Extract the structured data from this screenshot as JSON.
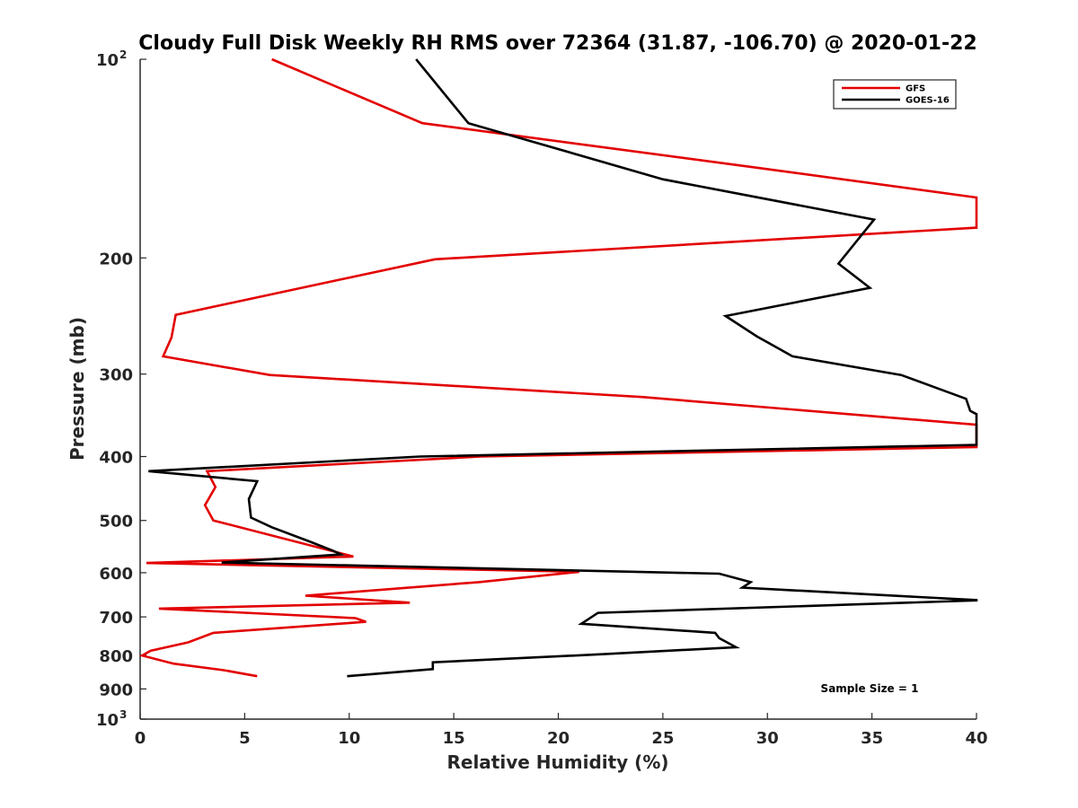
{
  "chart_data": {
    "type": "line",
    "title": "Cloudy Full Disk Weekly RH RMS over 72364 (31.87, -106.70) @ 2020-01-22",
    "xlabel": "Relative Humidity (%)",
    "ylabel": "Pressure (mb)",
    "xlim": [
      0,
      40
    ],
    "ylim": [
      100,
      1000
    ],
    "y_scale": "log",
    "y_reversed": true,
    "xticks": [
      "0",
      "5",
      "10",
      "15",
      "20",
      "25",
      "30",
      "35",
      "40"
    ],
    "yticks": [
      {
        "value": 100,
        "base": "10",
        "exp": "2"
      },
      {
        "value": 200,
        "label": "200"
      },
      {
        "value": 300,
        "label": "300"
      },
      {
        "value": 400,
        "label": "400"
      },
      {
        "value": 500,
        "label": "500"
      },
      {
        "value": 600,
        "label": "600"
      },
      {
        "value": 700,
        "label": "700"
      },
      {
        "value": 800,
        "label": "800"
      },
      {
        "value": 900,
        "label": "900"
      },
      {
        "value": 1000,
        "base": "10",
        "exp": "3"
      }
    ],
    "legend_position": "top-right",
    "annotation": "Sample Size = 1",
    "series": [
      {
        "name": "GFS",
        "color": "#e30000",
        "points": [
          [
            6.3,
            100
          ],
          [
            13.5,
            125
          ],
          [
            29.5,
            146
          ],
          [
            40,
            162
          ],
          [
            40,
            180
          ],
          [
            14.1,
            201
          ],
          [
            1.7,
            244
          ],
          [
            1.5,
            264
          ],
          [
            1.1,
            282
          ],
          [
            6.2,
            301
          ],
          [
            24,
            325
          ],
          [
            40,
            358
          ],
          [
            40,
            387
          ],
          [
            16.3,
            400
          ],
          [
            3.2,
            421
          ],
          [
            3.6,
            445
          ],
          [
            3.1,
            474
          ],
          [
            3.5,
            500
          ],
          [
            10.2,
            567
          ],
          [
            0.3,
            580
          ],
          [
            21,
            598
          ],
          [
            16.2,
            620
          ],
          [
            7.9,
            650
          ],
          [
            12.9,
            666
          ],
          [
            0.9,
            680
          ],
          [
            10.3,
            703
          ],
          [
            10.8,
            712
          ],
          [
            3.5,
            740
          ],
          [
            2.3,
            765
          ],
          [
            0.5,
            788
          ],
          [
            0.1,
            801
          ],
          [
            1.6,
            824
          ],
          [
            4,
            843
          ],
          [
            5.6,
            861
          ]
        ]
      },
      {
        "name": "GOES-16",
        "color": "#000000",
        "points": [
          [
            13.2,
            100
          ],
          [
            15.7,
            125
          ],
          [
            25,
            152
          ],
          [
            35.1,
            175
          ],
          [
            33.4,
            204
          ],
          [
            34.9,
            222
          ],
          [
            28,
            245
          ],
          [
            29.5,
            263
          ],
          [
            31.2,
            282
          ],
          [
            36.4,
            301
          ],
          [
            39.5,
            327
          ],
          [
            39.7,
            341
          ],
          [
            40,
            345
          ],
          [
            40,
            384
          ],
          [
            13.4,
            400
          ],
          [
            0.4,
            421
          ],
          [
            5.6,
            436
          ],
          [
            5.2,
            464
          ],
          [
            5.3,
            495
          ],
          [
            6.3,
            512
          ],
          [
            8.1,
            538
          ],
          [
            9.3,
            557
          ],
          [
            9.6,
            563
          ],
          [
            3.9,
            579
          ],
          [
            27.7,
            602
          ],
          [
            29.2,
            620
          ],
          [
            28.8,
            632
          ],
          [
            40,
            660
          ],
          [
            40,
            661
          ],
          [
            21.9,
            690
          ],
          [
            21.1,
            717
          ],
          [
            27.5,
            740
          ],
          [
            27.7,
            754
          ],
          [
            28.5,
            778
          ],
          [
            22.2,
            797
          ],
          [
            14,
            820
          ],
          [
            14,
            840
          ],
          [
            9.9,
            861
          ]
        ]
      }
    ]
  }
}
